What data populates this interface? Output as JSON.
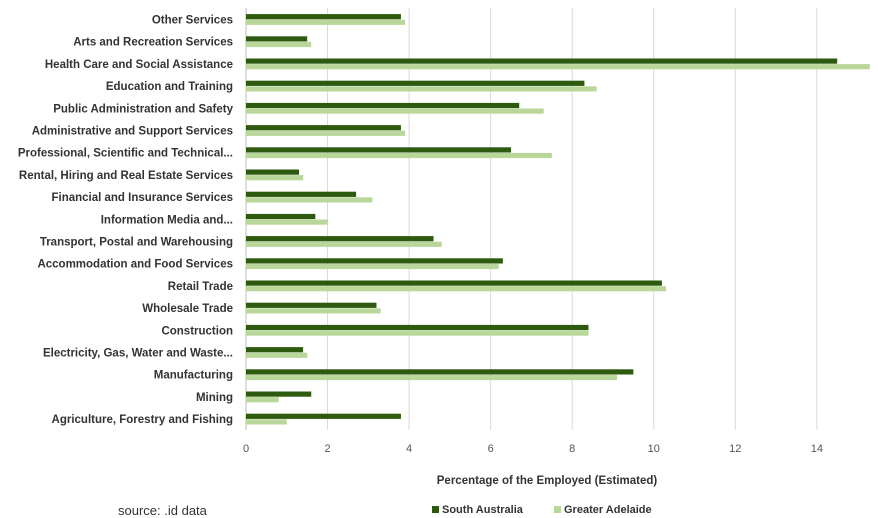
{
  "chart_data": {
    "type": "bar",
    "orientation": "horizontal",
    "categories": [
      "Other Services",
      "Arts and Recreation Services",
      "Health Care and Social Assistance",
      "Education and Training",
      "Public Administration and Safety",
      "Administrative and Support Services",
      "Professional, Scientific and Technical...",
      "Rental, Hiring and Real Estate Services",
      "Financial and Insurance Services",
      "Information Media and...",
      "Transport, Postal and Warehousing",
      "Accommodation and Food Services",
      "Retail Trade",
      "Wholesale Trade",
      "Construction",
      "Electricity, Gas, Water and Waste...",
      "Manufacturing",
      "Mining",
      "Agriculture, Forestry and Fishing"
    ],
    "series": [
      {
        "name": "South Australia",
        "color": "#2d5a0f",
        "values": [
          3.8,
          1.5,
          14.5,
          8.3,
          6.7,
          3.8,
          6.5,
          1.3,
          2.7,
          1.7,
          4.6,
          6.3,
          10.2,
          3.2,
          8.4,
          1.4,
          9.5,
          1.6,
          3.8
        ]
      },
      {
        "name": "Greater Adelaide",
        "color": "#b9d79a",
        "values": [
          3.9,
          1.6,
          15.3,
          8.6,
          7.3,
          3.9,
          7.5,
          1.4,
          3.1,
          2.0,
          4.8,
          6.2,
          10.3,
          3.3,
          8.4,
          1.5,
          9.1,
          0.8,
          1.0
        ]
      }
    ],
    "xlim": [
      0,
      15.5
    ],
    "xticks": [
      "0",
      "2",
      "4",
      "6",
      "8",
      "10",
      "12",
      "14"
    ],
    "xlabel": "Percentage of the Employed (Estimated)",
    "ylabel": "",
    "grid": "vertical",
    "legend": "bottom"
  },
  "source_note": "source: .id data"
}
